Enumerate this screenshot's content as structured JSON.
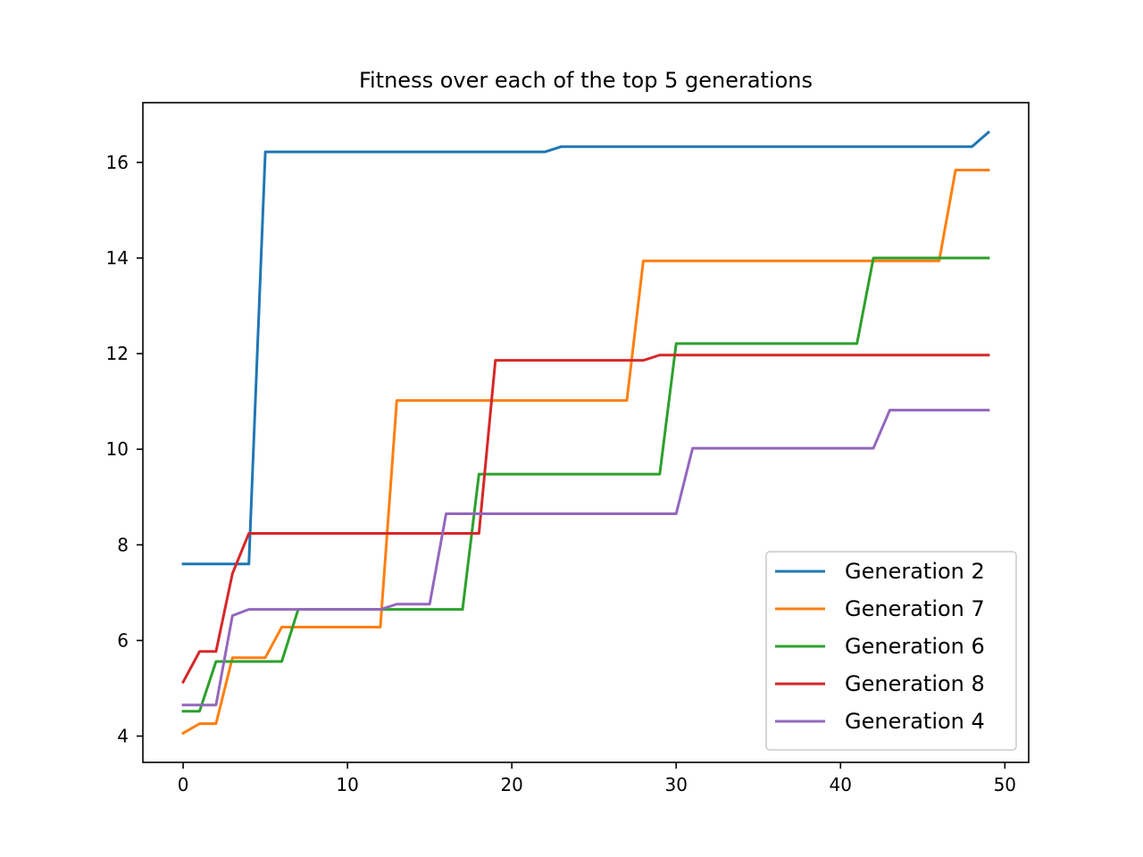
{
  "chart_data": {
    "type": "line",
    "title": "Fitness over each of the top 5 generations",
    "xlabel": "",
    "ylabel": "",
    "xlim": [
      -2.45,
      51.45
    ],
    "ylim": [
      3.45,
      17.25
    ],
    "xticks": [
      0,
      10,
      20,
      30,
      40,
      50
    ],
    "yticks": [
      4,
      6,
      8,
      10,
      12,
      14,
      16
    ],
    "grid": false,
    "legend_position": "lower right",
    "x": [
      0,
      1,
      2,
      3,
      4,
      5,
      6,
      7,
      8,
      9,
      10,
      11,
      12,
      13,
      14,
      15,
      16,
      17,
      18,
      19,
      20,
      21,
      22,
      23,
      24,
      25,
      26,
      27,
      28,
      29,
      30,
      31,
      32,
      33,
      34,
      35,
      36,
      37,
      38,
      39,
      40,
      41,
      42,
      43,
      44,
      45,
      46,
      47,
      48,
      49
    ],
    "series": [
      {
        "name": "Generation 2",
        "color": "#1f77b4",
        "values": [
          7.6,
          7.6,
          7.6,
          7.6,
          7.6,
          16.22,
          16.22,
          16.22,
          16.22,
          16.22,
          16.22,
          16.22,
          16.22,
          16.22,
          16.22,
          16.22,
          16.22,
          16.22,
          16.22,
          16.22,
          16.22,
          16.22,
          16.22,
          16.33,
          16.33,
          16.33,
          16.33,
          16.33,
          16.33,
          16.33,
          16.33,
          16.33,
          16.33,
          16.33,
          16.33,
          16.33,
          16.33,
          16.33,
          16.33,
          16.33,
          16.33,
          16.33,
          16.33,
          16.33,
          16.33,
          16.33,
          16.33,
          16.33,
          16.33,
          16.63
        ]
      },
      {
        "name": "Generation 7",
        "color": "#ff7f0e",
        "values": [
          4.06,
          4.26,
          4.26,
          5.64,
          5.64,
          5.64,
          6.28,
          6.28,
          6.28,
          6.28,
          6.28,
          6.28,
          6.28,
          11.02,
          11.02,
          11.02,
          11.02,
          11.02,
          11.02,
          11.02,
          11.02,
          11.02,
          11.02,
          11.02,
          11.02,
          11.02,
          11.02,
          11.02,
          13.94,
          13.94,
          13.94,
          13.94,
          13.94,
          13.94,
          13.94,
          13.94,
          13.94,
          13.94,
          13.94,
          13.94,
          13.94,
          13.94,
          13.94,
          13.94,
          13.94,
          13.94,
          13.94,
          15.84,
          15.84,
          15.84
        ]
      },
      {
        "name": "Generation 6",
        "color": "#2ca02c",
        "values": [
          4.52,
          4.52,
          5.56,
          5.56,
          5.56,
          5.56,
          5.56,
          6.65,
          6.65,
          6.65,
          6.65,
          6.65,
          6.65,
          6.65,
          6.65,
          6.65,
          6.65,
          6.65,
          9.48,
          9.48,
          9.48,
          9.48,
          9.48,
          9.48,
          9.48,
          9.48,
          9.48,
          9.48,
          9.48,
          9.48,
          12.21,
          12.21,
          12.21,
          12.21,
          12.21,
          12.21,
          12.21,
          12.21,
          12.21,
          12.21,
          12.21,
          12.21,
          14.0,
          14.0,
          14.0,
          14.0,
          14.0,
          14.0,
          14.0,
          14.0
        ]
      },
      {
        "name": "Generation 8",
        "color": "#d62728",
        "values": [
          5.13,
          5.77,
          5.77,
          7.4,
          8.24,
          8.24,
          8.24,
          8.24,
          8.24,
          8.24,
          8.24,
          8.24,
          8.24,
          8.24,
          8.24,
          8.24,
          8.24,
          8.24,
          8.24,
          11.86,
          11.86,
          11.86,
          11.86,
          11.86,
          11.86,
          11.86,
          11.86,
          11.86,
          11.86,
          11.97,
          11.97,
          11.97,
          11.97,
          11.97,
          11.97,
          11.97,
          11.97,
          11.97,
          11.97,
          11.97,
          11.97,
          11.97,
          11.97,
          11.97,
          11.97,
          11.97,
          11.97,
          11.97,
          11.97,
          11.97
        ]
      },
      {
        "name": "Generation 4",
        "color": "#9467bd",
        "values": [
          4.65,
          4.65,
          4.65,
          6.52,
          6.65,
          6.65,
          6.65,
          6.65,
          6.65,
          6.65,
          6.65,
          6.65,
          6.65,
          6.76,
          6.76,
          6.76,
          8.65,
          8.65,
          8.65,
          8.65,
          8.65,
          8.65,
          8.65,
          8.65,
          8.65,
          8.65,
          8.65,
          8.65,
          8.65,
          8.65,
          8.65,
          10.02,
          10.02,
          10.02,
          10.02,
          10.02,
          10.02,
          10.02,
          10.02,
          10.02,
          10.02,
          10.02,
          10.02,
          10.82,
          10.82,
          10.82,
          10.82,
          10.82,
          10.82,
          10.82
        ]
      }
    ]
  }
}
